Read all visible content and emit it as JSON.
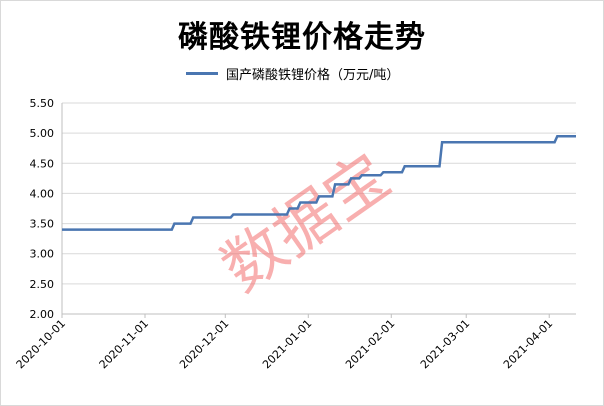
{
  "chart_data": {
    "type": "line",
    "title": "磷酸铁锂价格走势",
    "xlabel": "",
    "ylabel": "",
    "ylim": [
      2.0,
      5.5
    ],
    "yticks": [
      "2.00",
      "2.50",
      "3.00",
      "3.50",
      "4.00",
      "4.50",
      "5.00",
      "5.50"
    ],
    "xticks": [
      "2020-10-01",
      "2020-11-01",
      "2020-12-01",
      "2021-01-01",
      "2021-02-01",
      "2021-03-01",
      "2021-04-01"
    ],
    "grid": true,
    "legend_position": "top-center",
    "series": [
      {
        "name": "国产磷酸铁锂价格（万元/吨）",
        "color": "#4a76b1",
        "x": [
          "2020-10-01",
          "2020-11-11",
          "2020-11-12",
          "2020-11-18",
          "2020-11-19",
          "2020-12-03",
          "2020-12-04",
          "2020-12-24",
          "2020-12-25",
          "2020-12-28",
          "2020-12-29",
          "2021-01-04",
          "2021-01-05",
          "2021-01-10",
          "2021-01-11",
          "2021-01-16",
          "2021-01-17",
          "2021-01-20",
          "2021-01-21",
          "2021-01-28",
          "2021-01-29",
          "2021-02-05",
          "2021-02-06",
          "2021-02-19",
          "2021-02-20",
          "2021-02-28",
          "2021-02-29",
          "2021-03-31",
          "2021-04-01",
          "2021-04-03",
          "2021-04-04",
          "2021-04-11"
        ],
        "values": [
          3.4,
          3.4,
          3.5,
          3.5,
          3.6,
          3.6,
          3.65,
          3.65,
          3.75,
          3.75,
          3.85,
          3.85,
          3.95,
          3.95,
          4.15,
          4.15,
          4.25,
          4.25,
          4.3,
          4.3,
          4.35,
          4.35,
          4.45,
          4.45,
          4.85,
          4.85,
          4.85,
          4.85,
          4.85,
          4.85,
          4.95,
          4.95
        ]
      }
    ],
    "watermark": "数据宝"
  }
}
